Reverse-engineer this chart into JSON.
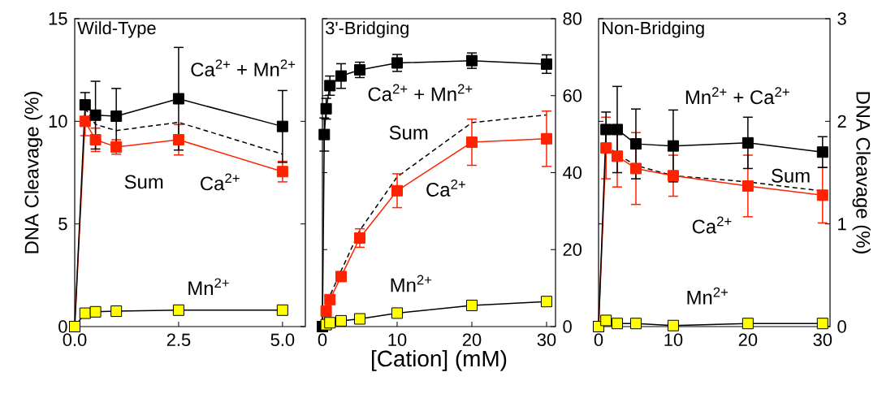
{
  "chart_data": [
    {
      "type": "line",
      "title": "Wild-Type",
      "ylabel": "DNA Cleavage (%)",
      "x": [
        0,
        0.25,
        0.5,
        1,
        2.5,
        5
      ],
      "xlim": [
        0,
        5.55
      ],
      "xticks": [
        {
          "value": 0,
          "label": "0.0"
        },
        {
          "value": 2.5,
          "label": "2.5"
        },
        {
          "value": 5,
          "label": "5.0"
        }
      ],
      "ylim": [
        0,
        15
      ],
      "yticks": [
        0,
        5,
        10,
        15
      ],
      "series": [
        {
          "color": "#000000",
          "line_style": "dashed",
          "marker": "none",
          "values": [
            null,
            10.65,
            9.85,
            9.55,
            9.95,
            8.4
          ]
        },
        {
          "color": "#ff2200",
          "marker": "square",
          "values": [
            0,
            10,
            9.1,
            8.75,
            9.1,
            7.55
          ],
          "errors": [
            null,
            0.7,
            0.57,
            0.35,
            0.74,
            0.5
          ]
        },
        {
          "color": "#000000",
          "marker": "square",
          "values": [
            0,
            10.8,
            10.3,
            10.25,
            11.1,
            9.75
          ],
          "errors": [
            null,
            0.6,
            1.65,
            1.35,
            2.5,
            1.75
          ]
        },
        {
          "color": "#ffff00",
          "marker": "square",
          "values": [
            0,
            0.65,
            0.72,
            0.75,
            0.8,
            0.8
          ]
        }
      ],
      "annotations": [
        "Ca$^{2+}$ + Mn$^{2+}$",
        "Sum",
        "Ca$^{2+}$",
        "Mn$^{2+}$"
      ]
    },
    {
      "type": "line",
      "title": "3'-Bridging",
      "xlabel": "[Cation] (mM)",
      "x": [
        0,
        0.25,
        0.5,
        1,
        2.5,
        5,
        10,
        20,
        30
      ],
      "xlim": [
        0,
        31.2
      ],
      "xticks": [
        0,
        10,
        20,
        30
      ],
      "y2lim": [
        0,
        80
      ],
      "y2ticks": [
        0,
        20,
        40,
        60,
        80
      ],
      "series": [
        {
          "color": "#000000",
          "axis": "y2",
          "line_style": "dashed",
          "marker": "none",
          "values": [
            null,
            2.3,
            4.5,
            8,
            14.5,
            25,
            38.9,
            53,
            55
          ]
        },
        {
          "color": "#ff2200",
          "axis": "y2",
          "marker": "square",
          "values": [
            0,
            null,
            4,
            7,
            13,
            23,
            35.3,
            47.9,
            48.8
          ],
          "errors": [
            null,
            null,
            null,
            1,
            1.2,
            2.4,
            4.4,
            6,
            7.2
          ]
        },
        {
          "color": "#000000",
          "axis": "y2",
          "marker": "square",
          "values": [
            0,
            49.9,
            56.6,
            62.6,
            65.1,
            66.7,
            68.5,
            69.1,
            68.2
          ],
          "errors": [
            null,
            4.3,
            2.7,
            2.5,
            3.2,
            2,
            2.2,
            2,
            2.4
          ]
        },
        {
          "color": "#ffff00",
          "axis": "y2",
          "marker": "square",
          "values": [
            null,
            null,
            0.5,
            1,
            1.5,
            2,
            3.5,
            5.5,
            6.5
          ]
        }
      ],
      "annotations": [
        "Ca$^{2+}$ + Mn$^{2+}$",
        "Sum",
        "Ca$^{2+}$",
        "Mn$^{2+}$"
      ]
    },
    {
      "type": "line",
      "title": "Non-Bridging",
      "y2label": "DNA  Cleavage (%)",
      "x": [
        0,
        1,
        2.5,
        5,
        10,
        20,
        30
      ],
      "xlim": [
        0,
        31
      ],
      "xticks": [
        0,
        10,
        20,
        30
      ],
      "y2lim": [
        0,
        3
      ],
      "y2ticks": [
        0,
        1,
        2,
        3
      ],
      "series": [
        {
          "color": "#000000",
          "axis": "y2",
          "line_style": "dashed",
          "marker": "none",
          "values": [
            null,
            1.77,
            1.68,
            1.57,
            1.47,
            1.41,
            1.32
          ]
        },
        {
          "color": "#ff2200",
          "axis": "y2",
          "marker": "square",
          "values": [
            0,
            1.74,
            1.66,
            1.54,
            1.47,
            1.37,
            1.28
          ],
          "errors": [
            null,
            0.3,
            0.3,
            0.35,
            0.2,
            0.3,
            0.27
          ]
        },
        {
          "color": "#000000",
          "axis": "y2",
          "marker": "square",
          "values": [
            0,
            1.92,
            1.92,
            1.78,
            1.76,
            1.79,
            1.7
          ],
          "errors": [
            null,
            0.17,
            0.42,
            0.34,
            0.35,
            0.25,
            0.15
          ]
        },
        {
          "color": "#ffff00",
          "axis": "y2",
          "marker": "square",
          "values": [
            0,
            0.06,
            0.03,
            0.03,
            0.01,
            0.03,
            0.03
          ]
        }
      ],
      "annotations": [
        "Mn$^{2+}$ + Ca$^{2+}$",
        "Sum",
        "Ca$^{2+}$",
        "Mn$^{2+}$"
      ]
    }
  ]
}
